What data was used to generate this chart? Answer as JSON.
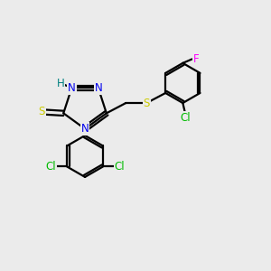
{
  "background_color": "#ebebeb",
  "bond_color": "#000000",
  "atom_colors": {
    "N": "#0000ee",
    "S": "#cccc00",
    "Cl": "#00bb00",
    "F": "#ff00ff",
    "H": "#008080",
    "C": "#000000"
  },
  "line_width": 1.6,
  "font_size": 8.5,
  "figsize": [
    3.0,
    3.0
  ],
  "dpi": 100
}
